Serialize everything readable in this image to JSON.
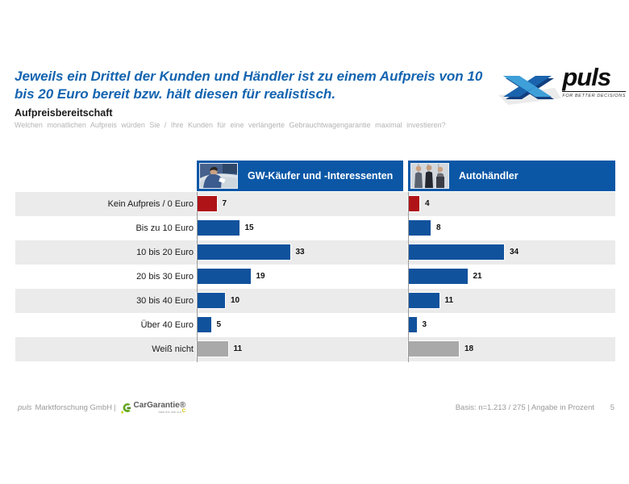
{
  "slide": {
    "title": "Jeweils ein Drittel der Kunden und Händler ist zu einem Aufpreis von 10 bis 20 Euro bereit bzw. hält diesen für realistisch.",
    "section_heading": "Aufpreisbereitschaft",
    "question": "Welchen monatlichen Aufpreis würden Sie / Ihre Kunden für eine verlängerte Gebrauchtwagengarantie maximal investieren?",
    "footer": {
      "company_italic": "puls",
      "company_rest": "Marktforschung GmbH",
      "separator": "|",
      "basis": "Basis: n=1.213 / 275 | Angabe in Prozent",
      "page_number": "5"
    }
  },
  "logos": {
    "puls": {
      "wordmark": "puls",
      "tagline": "FOR BETTER DECISIONS"
    },
    "cargarantie": {
      "wordmark": "CarGarantie®",
      "tagline": "take the risk out"
    }
  },
  "accent_colors": {
    "title_blue": "#1464B0",
    "header_blue": "#0B57A6"
  },
  "chart_data": {
    "type": "bar",
    "orientation": "horizontal",
    "title": "Aufpreisbereitschaft",
    "unit": "Prozent",
    "value_labels_shown": true,
    "grid": false,
    "xlim": [
      0,
      40
    ],
    "categories": [
      "Kein Aufpreis / 0 Euro",
      "Bis zu 10 Euro",
      "10 bis 20 Euro",
      "20 bis 30 Euro",
      "30 bis 40 Euro",
      "Über 40 Euro",
      "Weiß nicht"
    ],
    "series": [
      {
        "key": "buyers",
        "name": "GW-Käufer und -Interessenten",
        "values": [
          7,
          15,
          33,
          19,
          10,
          5,
          11
        ]
      },
      {
        "key": "dealers",
        "name": "Autohändler",
        "values": [
          4,
          8,
          34,
          21,
          11,
          3,
          18
        ]
      }
    ],
    "colors": {
      "red": "#AF1318",
      "blue": "#11529D",
      "gray": "#A9A9A9"
    },
    "row_color_keys": [
      "red",
      "blue",
      "blue",
      "blue",
      "blue",
      "blue",
      "gray"
    ]
  }
}
